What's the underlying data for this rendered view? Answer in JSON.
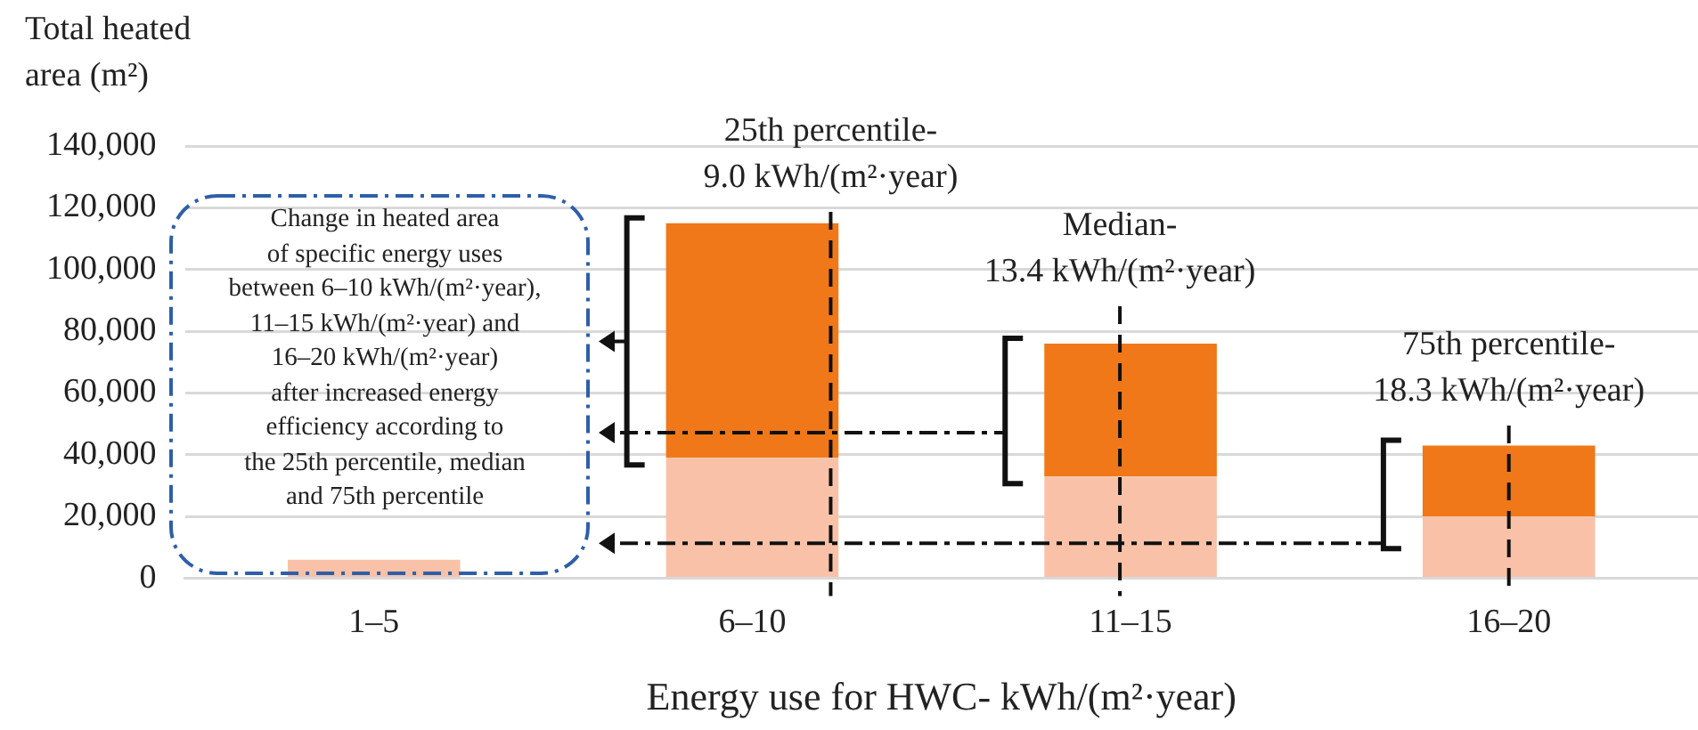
{
  "chart_data": {
    "type": "bar",
    "stacked": true,
    "xlabel": "Energy use for HWC- kWh/(m²·year)",
    "ylabel": "Total heated area (m²)",
    "categories": [
      "1–5",
      "6–10",
      "11–15",
      "16–20"
    ],
    "series": [
      {
        "color": "#f9c2a8",
        "values": [
          6000,
          39000,
          33000,
          20000
        ]
      },
      {
        "color": "#f07818",
        "values": [
          0,
          76000,
          43000,
          23000
        ]
      }
    ],
    "ylim": [
      0,
      140000
    ],
    "yticks": [
      0,
      {
        "value": 20000,
        "label": "20,000"
      },
      {
        "value": 40000,
        "label": "40,000"
      },
      {
        "value": 60000,
        "label": "60,000"
      },
      {
        "value": 80000,
        "label": "80,000"
      },
      {
        "value": 100000,
        "label": "100,000"
      },
      {
        "value": 120000,
        "label": "120,000"
      },
      {
        "value": 140000,
        "label": "140,000"
      }
    ],
    "grid": "y",
    "annotations": [
      "Change in heated area\nof specific energy uses\nbetween 6–10 kWh/(m²·year),\n11–15 kWh/(m²·year) and\n16–20 kWh/(m²·year)\nafter increased energy\nefficiency according to\nthe 25th percentile, median\nand 75th percentile",
      "25th percentile-\n9.0 kWh/(m²·year)",
      "Median-\n13.4 kWh/(m²·year)",
      "75th percentile-\n18.3 kWh/(m²·year)"
    ]
  }
}
